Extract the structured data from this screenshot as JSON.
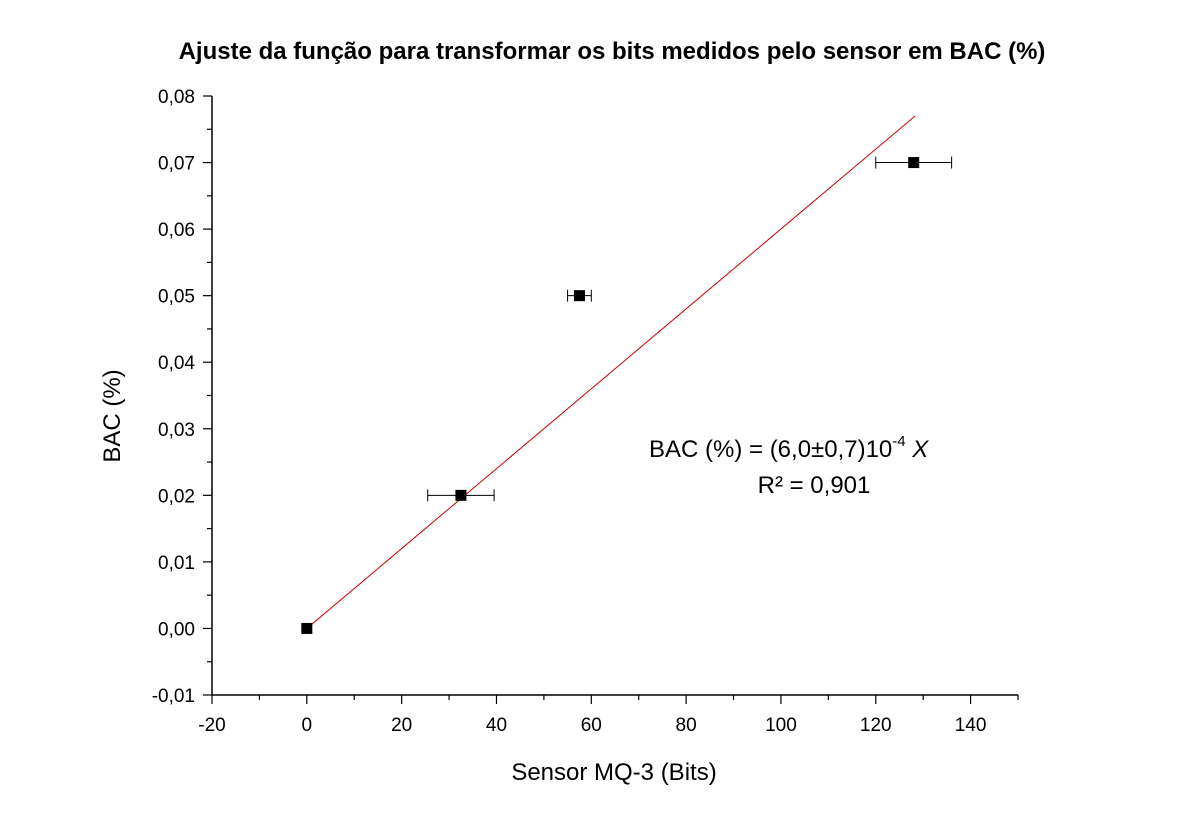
{
  "chart_data": {
    "type": "scatter",
    "title": "Ajuste da função para transformar os bits medidos pelo sensor em BAC (%)",
    "xlabel": "Sensor MQ-3 (Bits)",
    "ylabel": "BAC (%)",
    "xlim": [
      -20,
      150
    ],
    "ylim": [
      -0.01,
      0.08
    ],
    "xticks": [
      -20,
      0,
      20,
      40,
      60,
      80,
      100,
      120,
      140
    ],
    "xtick_labels": [
      "-20",
      "0",
      "20",
      "40",
      "60",
      "80",
      "100",
      "120",
      "140"
    ],
    "yticks": [
      -0.01,
      0,
      0.01,
      0.02,
      0.03,
      0.04,
      0.05,
      0.06,
      0.07,
      0.08
    ],
    "ytick_labels": [
      "-0,01",
      "0,00",
      "0,01",
      "0,02",
      "0,03",
      "0,04",
      "0,05",
      "0,06",
      "0,07",
      "0,08"
    ],
    "grid": false,
    "series": [
      {
        "type": "scatter",
        "x": [
          0,
          32.5,
          57.5,
          128
        ],
        "y": [
          0,
          0.02,
          0.05,
          0.07
        ],
        "xerr": [
          0,
          7,
          2.5,
          8
        ],
        "marker": "square",
        "color": "#000000"
      },
      {
        "type": "line",
        "x": [
          0,
          128.3
        ],
        "y": [
          0,
          0.077
        ],
        "color": "#cc0000"
      }
    ],
    "annotations": {
      "equation_main": "BAC (%) = (6,0±0,7)10",
      "equation_exponent": "-4",
      "equation_variable": "X",
      "r_squared": "R² = 0,901"
    }
  }
}
